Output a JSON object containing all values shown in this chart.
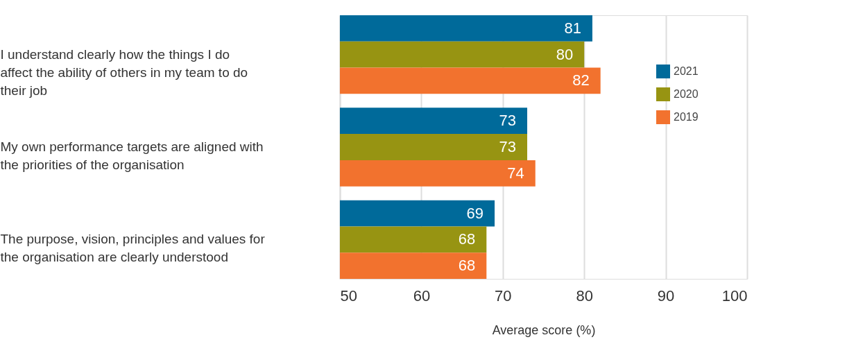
{
  "chart_data": {
    "type": "bar",
    "orientation": "horizontal",
    "xlabel": "Average score (%)",
    "categories": [
      "I understand clearly how the things I do affect the ability of others in my team to do their job",
      "My own performance targets are aligned with the priorities of the organisation",
      "The purpose, vision, principles and values for the organisation are clearly understood"
    ],
    "series": [
      {
        "name": "2021",
        "color": "#006a9a",
        "values": [
          81,
          73,
          69
        ]
      },
      {
        "name": "2020",
        "color": "#979412",
        "values": [
          80,
          73,
          68
        ]
      },
      {
        "name": "2019",
        "color": "#f2722e",
        "values": [
          82,
          74,
          68
        ]
      }
    ],
    "xlim": [
      50,
      100
    ],
    "xticks": [
      50,
      60,
      70,
      80,
      90,
      100
    ],
    "grid": "x",
    "legend": "top right",
    "data_labels": true
  }
}
